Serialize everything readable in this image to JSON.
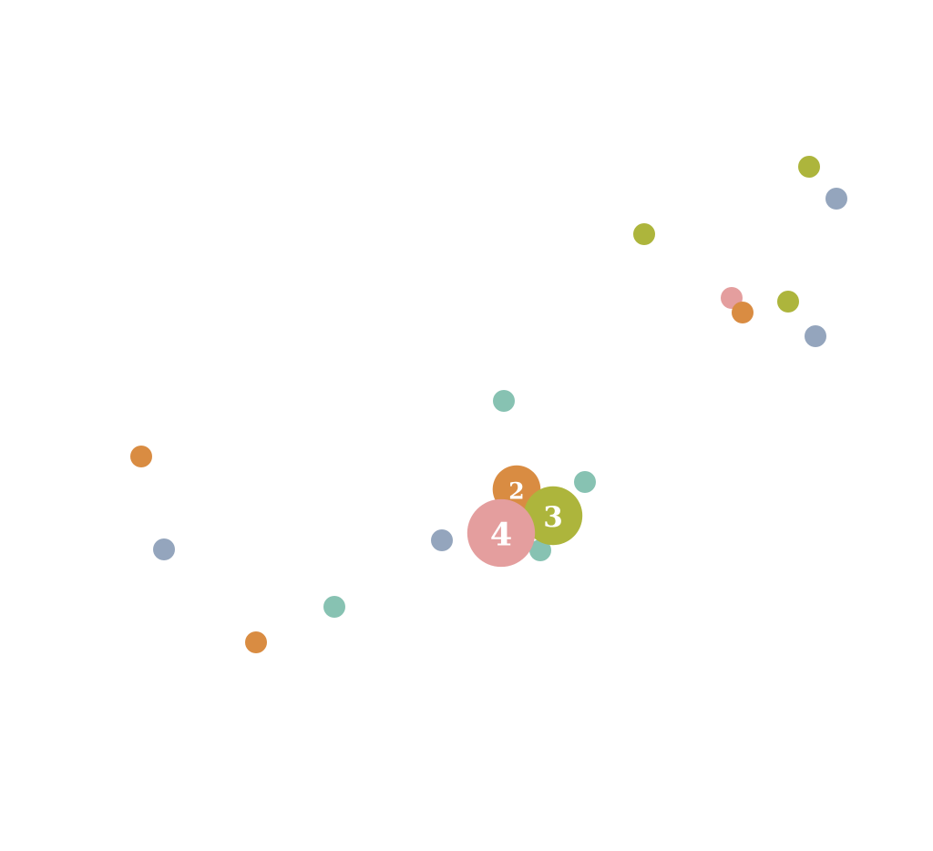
{
  "chart_data": {
    "type": "scatter",
    "title": "",
    "xlabel": "",
    "ylabel": "",
    "grid": false,
    "legend": "none",
    "xlim": [
      0,
      1024
    ],
    "ylim": [
      0,
      934
    ],
    "colors": {
      "orange": "#D98C42",
      "olive": "#ADB53C",
      "blue": "#94A5BD",
      "teal": "#87C2B2",
      "pink": "#E49E9E"
    },
    "points": [
      {
        "x": 155,
        "y": 433,
        "color": "orange"
      },
      {
        "x": 180,
        "y": 331,
        "color": "blue"
      },
      {
        "x": 281,
        "y": 229,
        "color": "orange"
      },
      {
        "x": 367,
        "y": 268,
        "color": "teal"
      },
      {
        "x": 485,
        "y": 341,
        "color": "blue"
      },
      {
        "x": 553,
        "y": 494,
        "color": "teal"
      },
      {
        "x": 593,
        "y": 330,
        "color": "teal"
      },
      {
        "x": 642,
        "y": 405,
        "color": "teal"
      },
      {
        "x": 707,
        "y": 677,
        "color": "olive"
      },
      {
        "x": 803,
        "y": 607,
        "color": "pink"
      },
      {
        "x": 815,
        "y": 591,
        "color": "orange"
      },
      {
        "x": 865,
        "y": 603,
        "color": "olive"
      },
      {
        "x": 895,
        "y": 565,
        "color": "blue"
      },
      {
        "x": 888,
        "y": 751,
        "color": "olive"
      },
      {
        "x": 918,
        "y": 716,
        "color": "blue"
      }
    ],
    "clusters": [
      {
        "label": "2",
        "count": 2,
        "x": 567,
        "y": 397,
        "color": "orange"
      },
      {
        "label": "3",
        "count": 3,
        "x": 607,
        "y": 368,
        "color": "olive"
      },
      {
        "label": "4",
        "count": 4,
        "x": 550,
        "y": 349,
        "color": "pink"
      }
    ]
  }
}
